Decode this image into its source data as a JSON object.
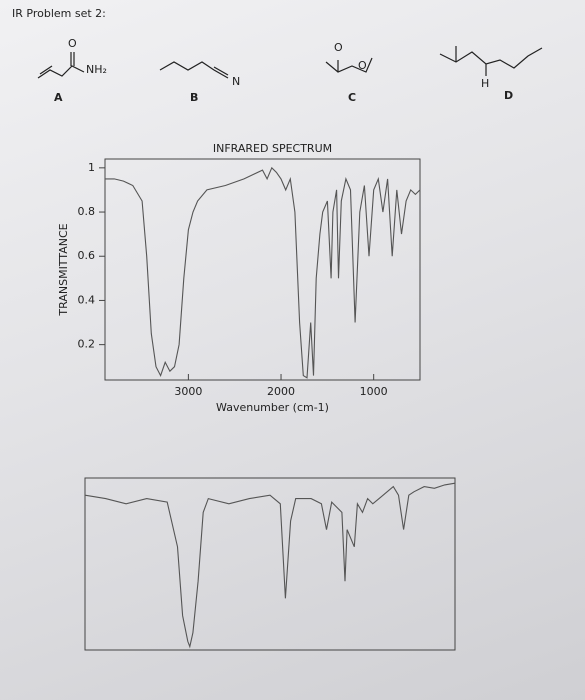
{
  "header": {
    "title": "IR Problem set 2:"
  },
  "molecules": [
    {
      "label": "A",
      "atoms": [
        "O",
        "NH₂"
      ]
    },
    {
      "label": "B",
      "atoms": [
        "N"
      ]
    },
    {
      "label": "C",
      "atoms": [
        "O",
        "O"
      ]
    },
    {
      "label": "D",
      "atoms": [
        "H"
      ]
    }
  ],
  "chart_data": [
    {
      "type": "line",
      "title": "INFRARED SPECTRUM",
      "y_label": "TRANSMITTANCE",
      "x_label": "Wavenumber (cm-1)",
      "color": "#555555",
      "x": [
        3900,
        3800,
        3700,
        3600,
        3500,
        3450,
        3400,
        3350,
        3300,
        3250,
        3200,
        3150,
        3100,
        3050,
        3000,
        2950,
        2900,
        2800,
        2600,
        2400,
        2300,
        2200,
        2150,
        2100,
        2050,
        2000,
        1950,
        1900,
        1850,
        1800,
        1760,
        1720,
        1680,
        1650,
        1620,
        1580,
        1550,
        1500,
        1460,
        1440,
        1400,
        1380,
        1350,
        1300,
        1250,
        1200,
        1150,
        1100,
        1050,
        1000,
        950,
        900,
        850,
        800,
        750,
        700,
        650,
        600,
        550,
        500
      ],
      "values": [
        0.95,
        0.95,
        0.94,
        0.92,
        0.85,
        0.6,
        0.25,
        0.1,
        0.06,
        0.12,
        0.08,
        0.1,
        0.2,
        0.5,
        0.72,
        0.8,
        0.85,
        0.9,
        0.92,
        0.95,
        0.97,
        0.99,
        0.95,
        1.0,
        0.98,
        0.95,
        0.9,
        0.95,
        0.8,
        0.3,
        0.06,
        0.05,
        0.3,
        0.06,
        0.5,
        0.7,
        0.8,
        0.85,
        0.5,
        0.8,
        0.9,
        0.5,
        0.85,
        0.95,
        0.9,
        0.3,
        0.8,
        0.92,
        0.6,
        0.9,
        0.95,
        0.8,
        0.95,
        0.6,
        0.9,
        0.7,
        0.85,
        0.9,
        0.88,
        0.9
      ],
      "xlim": [
        3900,
        500
      ],
      "ylim": [
        0.04,
        1.04
      ],
      "xticks": [
        3000,
        2000,
        1000
      ],
      "yticks": [
        0.2,
        0.4,
        0.6,
        0.8,
        1
      ]
    },
    {
      "type": "line",
      "color": "#555555",
      "x": [
        4000,
        3800,
        3600,
        3400,
        3200,
        3100,
        3050,
        3000,
        2980,
        2950,
        2900,
        2850,
        2800,
        2600,
        2400,
        2200,
        2100,
        2050,
        2000,
        1950,
        1800,
        1700,
        1650,
        1600,
        1500,
        1470,
        1450,
        1380,
        1350,
        1300,
        1250,
        1200,
        1100,
        1000,
        950,
        900,
        850,
        800,
        700,
        600,
        500,
        400
      ],
      "values": [
        90,
        88,
        85,
        88,
        86,
        60,
        20,
        5,
        2,
        10,
        40,
        80,
        88,
        85,
        88,
        90,
        85,
        30,
        75,
        88,
        88,
        85,
        70,
        86,
        80,
        40,
        70,
        60,
        85,
        80,
        88,
        85,
        90,
        95,
        90,
        70,
        90,
        92,
        95,
        94,
        96,
        97
      ],
      "xlim": [
        4000,
        400
      ],
      "ylim": [
        0,
        100
      ]
    }
  ]
}
